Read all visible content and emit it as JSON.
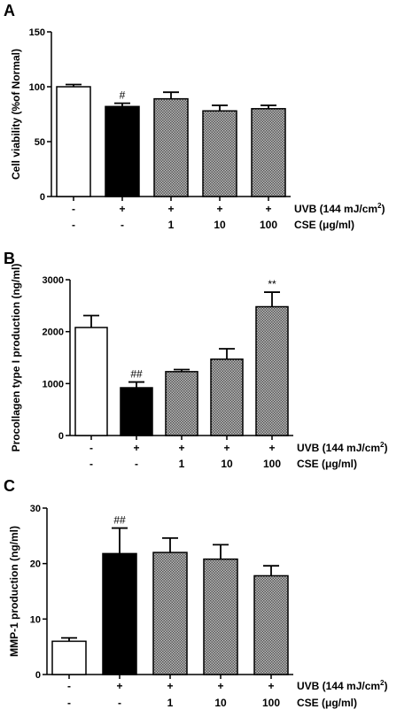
{
  "colors": {
    "axis": "#000000",
    "control": "#ffffff",
    "uvb_only": "#000000",
    "cse": "#9a9a9a"
  },
  "chart_data": [
    {
      "panel": "A",
      "type": "bar",
      "ylabel": "Cell viability (%of Normal)",
      "ylim": [
        0,
        150
      ],
      "yticks": [
        "0",
        "50",
        "100",
        "150"
      ],
      "treatment_rows": [
        {
          "label": "UVB (144 mJ/cm2)",
          "values": [
            "-",
            "+",
            "+",
            "+",
            "+"
          ]
        },
        {
          "label": "CSE (μg/ml)",
          "values": [
            "-",
            "-",
            "1",
            "10",
            "100"
          ]
        }
      ],
      "bar_styles": [
        "white",
        "black",
        "hatched",
        "hatched",
        "hatched"
      ],
      "values": [
        100,
        82,
        89,
        78,
        80
      ],
      "errors": [
        2,
        3,
        6,
        5,
        3
      ],
      "annotations": [
        "",
        "#",
        "",
        "",
        ""
      ]
    },
    {
      "panel": "B",
      "type": "bar",
      "ylabel": "Procollagen type I production (ng/ml)",
      "ylim": [
        0,
        3000
      ],
      "yticks": [
        "0",
        "1000",
        "2000",
        "3000"
      ],
      "treatment_rows": [
        {
          "label": "UVB (144 mJ/cm2)",
          "values": [
            "-",
            "+",
            "+",
            "+",
            "+"
          ]
        },
        {
          "label": "CSE (μg/ml)",
          "values": [
            "-",
            "-",
            "1",
            "10",
            "100"
          ]
        }
      ],
      "bar_styles": [
        "white",
        "black",
        "hatched",
        "hatched",
        "hatched"
      ],
      "values": [
        2080,
        920,
        1230,
        1470,
        2480
      ],
      "errors": [
        230,
        110,
        40,
        200,
        280
      ],
      "annotations": [
        "",
        "##",
        "",
        "",
        "**"
      ]
    },
    {
      "panel": "C",
      "type": "bar",
      "ylabel": "MMP-1 production (ng/ml)",
      "ylim": [
        0,
        30
      ],
      "yticks": [
        "0",
        "10",
        "20",
        "30"
      ],
      "treatment_rows": [
        {
          "label": "UVB (144 mJ/cm2)",
          "values": [
            "-",
            "+",
            "+",
            "+",
            "+"
          ]
        },
        {
          "label": "CSE (μg/ml)",
          "values": [
            "-",
            "-",
            "1",
            "10",
            "100"
          ]
        }
      ],
      "bar_styles": [
        "white",
        "black",
        "hatched",
        "hatched",
        "hatched"
      ],
      "values": [
        6,
        21.8,
        22,
        20.8,
        17.8
      ],
      "errors": [
        0.6,
        4.6,
        2.6,
        2.6,
        1.8
      ],
      "annotations": [
        "",
        "##",
        "",
        "",
        ""
      ]
    }
  ]
}
